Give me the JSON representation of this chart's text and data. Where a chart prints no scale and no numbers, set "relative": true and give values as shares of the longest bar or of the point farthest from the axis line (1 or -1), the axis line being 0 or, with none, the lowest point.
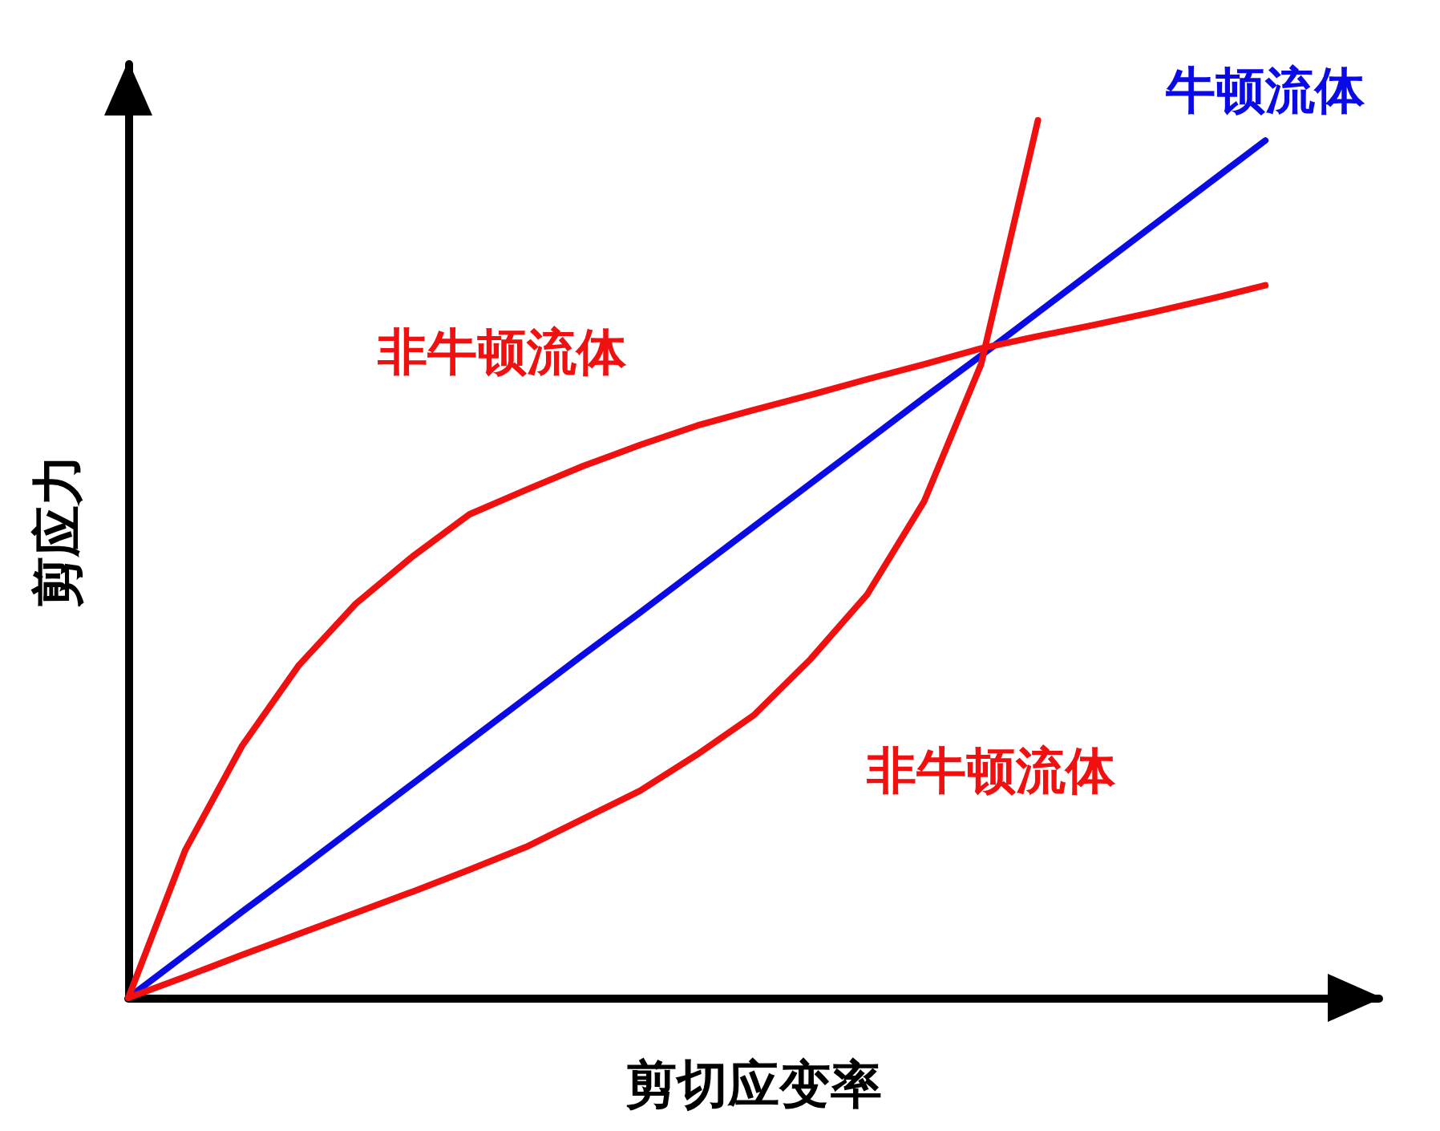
{
  "chart_data": {
    "type": "line",
    "relative": true,
    "xlabel": "剪切应变率",
    "ylabel": "剪应力",
    "categories": [
      null,
      null,
      null,
      null,
      null,
      null,
      null,
      null,
      null,
      null,
      null,
      null,
      null,
      null,
      null,
      null,
      null,
      null,
      null,
      null,
      null
    ],
    "series": [
      {
        "name": "牛顿流体",
        "color": "#0a0ae6",
        "values": [
          0,
          0.049,
          0.098,
          0.146,
          0.195,
          0.244,
          0.293,
          0.342,
          0.391,
          0.439,
          0.488,
          0.537,
          0.586,
          0.635,
          0.684,
          0.732,
          0.781,
          0.83,
          0.879,
          0.928,
          0.977
        ]
      },
      {
        "name": "非牛顿流体",
        "color": "#f01010",
        "values": [
          0,
          0.168,
          0.287,
          0.379,
          0.449,
          0.503,
          0.551,
          0.579,
          0.606,
          0.63,
          0.652,
          0.67,
          0.687,
          0.705,
          0.722,
          0.74,
          0.754,
          0.767,
          0.781,
          0.796,
          0.812
        ]
      },
      {
        "name": "非牛顿流体",
        "color": "#f01010",
        "values": [
          0,
          0.024,
          0.049,
          0.073,
          0.097,
          0.121,
          0.146,
          0.172,
          0.204,
          0.236,
          0.277,
          0.322,
          0.386,
          0.46,
          0.566,
          0.722,
          1,
          null,
          null,
          null,
          null
        ]
      }
    ]
  }
}
